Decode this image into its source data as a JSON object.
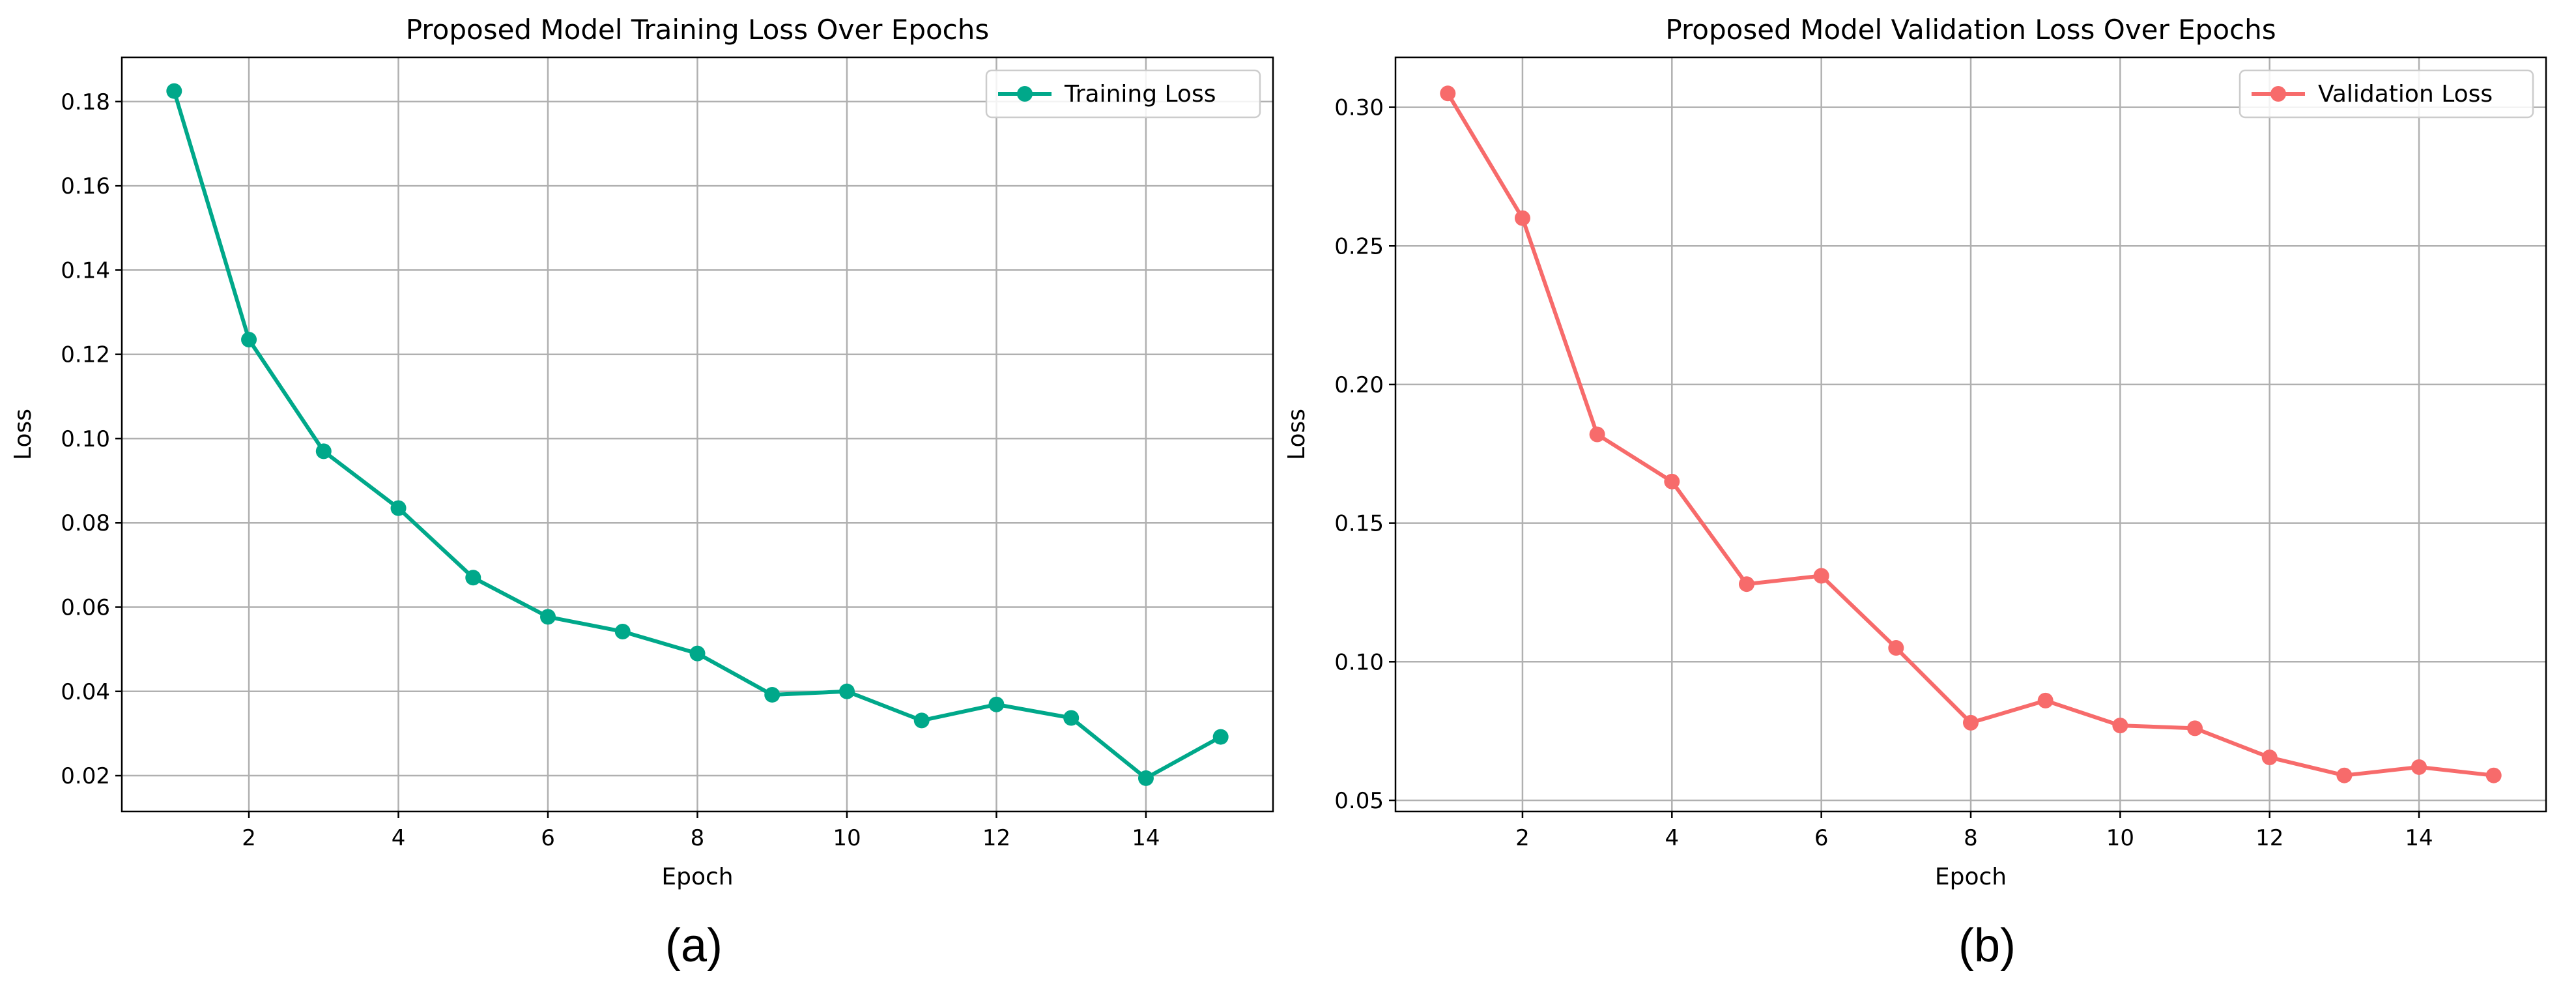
{
  "chart_data": [
    {
      "type": "line",
      "title": "Proposed Model Training Loss Over Epochs",
      "xlabel": "Epoch",
      "ylabel": "Loss",
      "caption": "(a)",
      "xlim": [
        0.3,
        15.7
      ],
      "ylim": [
        0.0115,
        0.1905
      ],
      "xticks": [
        2,
        4,
        6,
        8,
        10,
        12,
        14
      ],
      "xtick_labels": [
        "2",
        "4",
        "6",
        "8",
        "10",
        "12",
        "14"
      ],
      "yticks": [
        0.02,
        0.04,
        0.06,
        0.08,
        0.1,
        0.12,
        0.14,
        0.16,
        0.18
      ],
      "ytick_labels": [
        "0.02",
        "0.04",
        "0.06",
        "0.08",
        "0.10",
        "0.12",
        "0.14",
        "0.16",
        "0.18"
      ],
      "grid": true,
      "legend_position": "top-right",
      "series": [
        {
          "name": "Training Loss",
          "color": "#00a88a",
          "x": [
            1,
            2,
            3,
            4,
            5,
            6,
            7,
            8,
            9,
            10,
            11,
            12,
            13,
            14,
            15
          ],
          "y": [
            0.1825,
            0.1235,
            0.097,
            0.0835,
            0.067,
            0.0577,
            0.0542,
            0.049,
            0.0392,
            0.04,
            0.0331,
            0.0369,
            0.0337,
            0.0194,
            0.0292
          ]
        }
      ]
    },
    {
      "type": "line",
      "title": "Proposed Model Validation Loss Over Epochs",
      "xlabel": "Epoch",
      "ylabel": "Loss",
      "caption": "(b)",
      "xlim": [
        0.3,
        15.7
      ],
      "ylim": [
        0.046,
        0.318
      ],
      "xticks": [
        2,
        4,
        6,
        8,
        10,
        12,
        14
      ],
      "xtick_labels": [
        "2",
        "4",
        "6",
        "8",
        "10",
        "12",
        "14"
      ],
      "yticks": [
        0.05,
        0.1,
        0.15,
        0.2,
        0.25,
        0.3
      ],
      "ytick_labels": [
        "0.05",
        "0.10",
        "0.15",
        "0.20",
        "0.25",
        "0.30"
      ],
      "grid": true,
      "legend_position": "top-right",
      "series": [
        {
          "name": "Validation Loss",
          "color": "#f76b6b",
          "x": [
            1,
            2,
            3,
            4,
            5,
            6,
            7,
            8,
            9,
            10,
            11,
            12,
            13,
            14,
            15
          ],
          "y": [
            0.305,
            0.26,
            0.182,
            0.165,
            0.128,
            0.131,
            0.105,
            0.078,
            0.086,
            0.077,
            0.076,
            0.0655,
            0.059,
            0.062,
            0.059
          ]
        }
      ]
    }
  ]
}
